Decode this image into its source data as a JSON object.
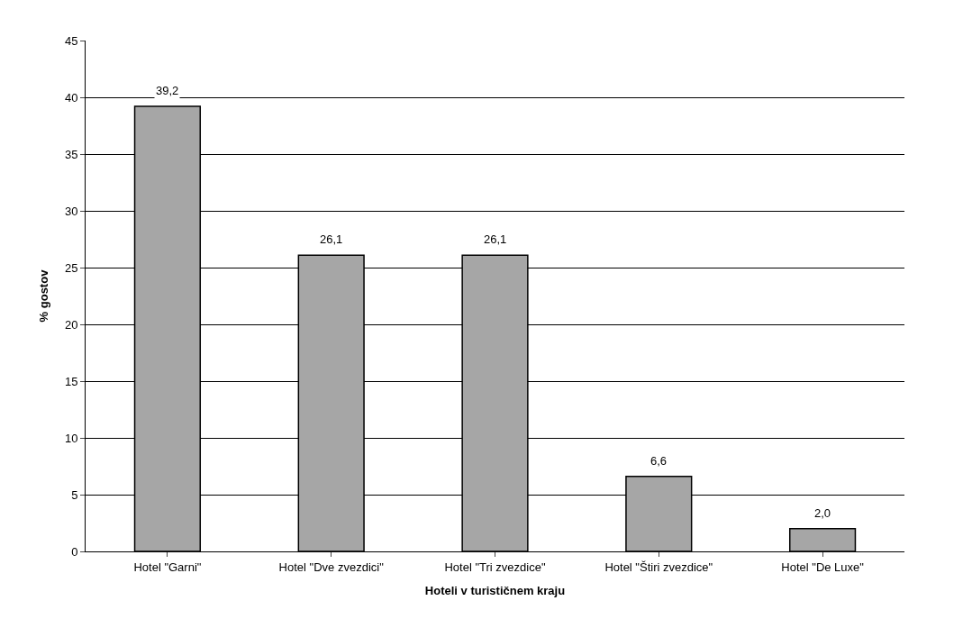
{
  "chart_data": {
    "type": "bar",
    "categories": [
      "Hotel \"Garni\"",
      "Hotel \"Dve zvezdici\"",
      "Hotel \"Tri zvezdice\"",
      "Hotel \"Štiri zvezdice\"",
      "Hotel \"De Luxe\""
    ],
    "values": [
      39.2,
      26.1,
      26.1,
      6.6,
      2.0
    ],
    "value_labels": [
      "39,2",
      "26,1",
      "26,1",
      "6,6",
      "2,0"
    ],
    "color": "#a6a6a6",
    "xlabel": "Hoteli v turističnem kraju",
    "ylabel": "% gostov",
    "ylim": [
      0,
      45
    ],
    "yticks": [
      0,
      5,
      10,
      15,
      20,
      25,
      30,
      35,
      40,
      45
    ],
    "grid": "y",
    "legend": false
  }
}
